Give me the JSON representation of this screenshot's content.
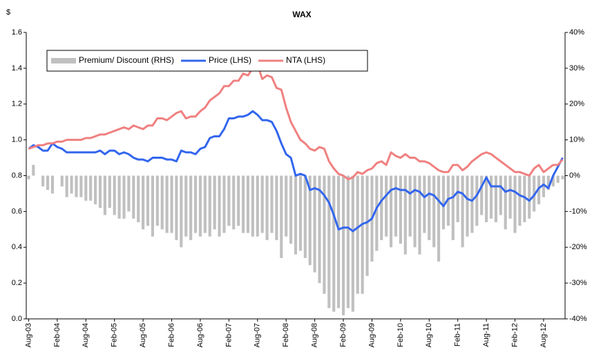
{
  "chart_data": {
    "type": "combo",
    "title": "WAX",
    "y_label": "$",
    "categories": [
      "Aug-03",
      null,
      null,
      null,
      null,
      null,
      "Feb-04",
      null,
      null,
      null,
      null,
      null,
      "Aug-04",
      null,
      null,
      null,
      null,
      null,
      "Feb-05",
      null,
      null,
      null,
      null,
      null,
      "Aug-05",
      null,
      null,
      null,
      null,
      null,
      "Feb-06",
      null,
      null,
      null,
      null,
      null,
      "Aug-06",
      null,
      null,
      null,
      null,
      null,
      "Feb-07",
      null,
      null,
      null,
      null,
      null,
      "Aug-07",
      null,
      null,
      null,
      null,
      null,
      "Feb-08",
      null,
      null,
      null,
      null,
      null,
      "Aug-08",
      null,
      null,
      null,
      null,
      null,
      "Feb-09",
      null,
      null,
      null,
      null,
      null,
      "Aug-09",
      null,
      null,
      null,
      null,
      null,
      "Feb-10",
      null,
      null,
      null,
      null,
      null,
      "Aug-10",
      null,
      null,
      null,
      null,
      null,
      "Feb-11",
      null,
      null,
      null,
      null,
      null,
      "Aug-11",
      null,
      null,
      null,
      null,
      null,
      "Feb-12",
      null,
      null,
      null,
      null,
      null,
      "Aug-12",
      null,
      null,
      null,
      null
    ],
    "series": [
      {
        "name": "Premium/ Discount (RHS)",
        "type": "bar",
        "axis": "y2",
        "color": "#c0c0c0",
        "values": [
          -1,
          3,
          0,
          -3,
          -4,
          -5,
          0,
          -3,
          -6,
          -5,
          -6,
          -6,
          -7,
          -7,
          -8,
          -9,
          -11,
          -9,
          -11,
          -12,
          -12,
          -10,
          -12,
          -13,
          -15,
          -14,
          -17,
          -14,
          -15,
          -16,
          -16,
          -18,
          -20,
          -17,
          -18,
          -16,
          -17,
          -16,
          -17,
          -15,
          -17,
          -16,
          -14,
          -15,
          -14,
          -16,
          -16,
          -17,
          -17,
          -16,
          -18,
          -16,
          -18,
          -23,
          -17,
          -19,
          -22,
          -21,
          -23,
          -25,
          -27,
          -30,
          -33,
          -37,
          -38,
          -37,
          -39,
          -37,
          -38,
          -33,
          -33,
          -28,
          -24,
          -21,
          -18,
          -17,
          -20,
          -17,
          -19,
          -22,
          -17,
          -20,
          -22,
          -16,
          -18,
          -20,
          -24,
          -15,
          -14,
          -18,
          -13,
          -20,
          -17,
          -16,
          -14,
          -11,
          -13,
          -12,
          -13,
          -11,
          -15,
          -12,
          -16,
          -14,
          -13,
          -12,
          -10,
          -8,
          -6,
          -4,
          -3,
          -2,
          -1
        ]
      },
      {
        "name": "Price (LHS)",
        "type": "line",
        "color": "#3366ee",
        "values": [
          0.95,
          0.97,
          0.96,
          0.94,
          0.94,
          0.98,
          0.96,
          0.95,
          0.93,
          0.93,
          0.93,
          0.93,
          0.93,
          0.93,
          0.93,
          0.94,
          0.92,
          0.94,
          0.94,
          0.92,
          0.93,
          0.92,
          0.9,
          0.89,
          0.89,
          0.88,
          0.9,
          0.9,
          0.9,
          0.89,
          0.89,
          0.88,
          0.94,
          0.93,
          0.93,
          0.92,
          0.95,
          0.96,
          1.01,
          1.02,
          1.02,
          1.06,
          1.12,
          1.12,
          1.13,
          1.13,
          1.14,
          1.16,
          1.14,
          1.11,
          1.11,
          1.1,
          1.05,
          0.98,
          0.92,
          0.9,
          0.8,
          0.81,
          0.8,
          0.72,
          0.73,
          0.72,
          0.69,
          0.65,
          0.58,
          0.5,
          0.51,
          0.51,
          0.49,
          0.51,
          0.53,
          0.54,
          0.56,
          0.62,
          0.66,
          0.69,
          0.72,
          0.73,
          0.72,
          0.72,
          0.7,
          0.72,
          0.71,
          0.68,
          0.7,
          0.69,
          0.66,
          0.63,
          0.67,
          0.68,
          0.71,
          0.7,
          0.67,
          0.66,
          0.69,
          0.74,
          0.79,
          0.74,
          0.74,
          0.74,
          0.71,
          0.72,
          0.71,
          0.69,
          0.68,
          0.66,
          0.69,
          0.73,
          0.75,
          0.73,
          0.8,
          0.85,
          0.9
        ]
      },
      {
        "name": "NTA (LHS)",
        "type": "line",
        "color": "#f08080",
        "values": [
          0.95,
          0.96,
          0.97,
          0.97,
          0.98,
          0.98,
          0.99,
          0.99,
          1.0,
          1.0,
          1.0,
          1.0,
          1.01,
          1.01,
          1.02,
          1.03,
          1.03,
          1.04,
          1.05,
          1.06,
          1.07,
          1.06,
          1.08,
          1.07,
          1.06,
          1.08,
          1.08,
          1.12,
          1.12,
          1.11,
          1.13,
          1.15,
          1.16,
          1.12,
          1.13,
          1.13,
          1.16,
          1.18,
          1.22,
          1.24,
          1.26,
          1.3,
          1.3,
          1.33,
          1.33,
          1.37,
          1.36,
          1.4,
          1.42,
          1.34,
          1.36,
          1.35,
          1.29,
          1.28,
          1.18,
          1.1,
          1.05,
          1.0,
          0.98,
          0.95,
          0.94,
          0.96,
          0.95,
          0.88,
          0.84,
          0.81,
          0.8,
          0.78,
          0.79,
          0.82,
          0.81,
          0.83,
          0.84,
          0.87,
          0.88,
          0.86,
          0.93,
          0.91,
          0.9,
          0.92,
          0.9,
          0.9,
          0.88,
          0.88,
          0.87,
          0.85,
          0.83,
          0.82,
          0.82,
          0.86,
          0.86,
          0.83,
          0.85,
          0.88,
          0.9,
          0.92,
          0.93,
          0.92,
          0.9,
          0.88,
          0.86,
          0.84,
          0.82,
          0.82,
          0.81,
          0.8,
          0.84,
          0.86,
          0.82,
          0.84,
          0.86,
          0.86,
          0.89
        ]
      }
    ],
    "ylim": [
      0,
      1.6
    ],
    "yticks": [
      {
        "value": 0,
        "label": "0.0"
      },
      0.2,
      0.4,
      0.6,
      0.8,
      {
        "value": 1,
        "label": "1.0"
      },
      1.2,
      1.4,
      1.6
    ],
    "y2lim": [
      -40,
      40
    ],
    "y2ticks": [
      {
        "value": -40,
        "label": "-40%"
      },
      {
        "value": -30,
        "label": "-30%"
      },
      {
        "value": -20,
        "label": "-20%"
      },
      {
        "value": -10,
        "label": "-10%"
      },
      {
        "value": 0,
        "label": "0%"
      },
      {
        "value": 10,
        "label": "10%"
      },
      {
        "value": 20,
        "label": "20%"
      },
      {
        "value": 30,
        "label": "30%"
      },
      {
        "value": 40,
        "label": "40%"
      }
    ],
    "legend": "top-left",
    "grid": false
  }
}
